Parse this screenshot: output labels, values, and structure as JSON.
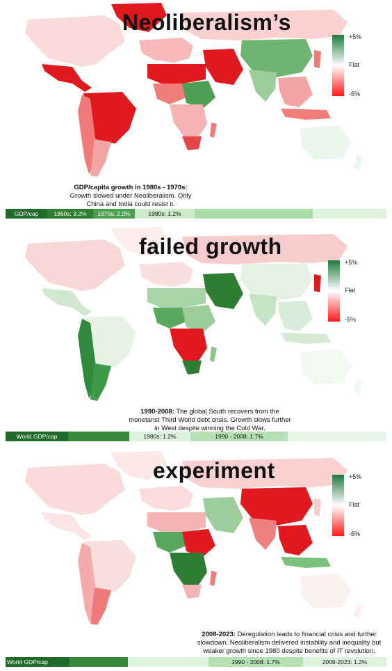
{
  "colors": {
    "strong_green": "#2e7d32",
    "mid_green": "#6abf69",
    "light_green": "#cdeccc",
    "light_red": "#f8c6c6",
    "strong_red": "#e0191e"
  },
  "legend": {
    "top": "+5%",
    "mid": "Flat",
    "bottom": "-5%"
  },
  "panels": [
    {
      "title": "Neoliberalism’s",
      "caption_bold": "GDP/capita growth in 1980s - 1970s:",
      "caption_text": "Growth slowed under Neoliberalism. Only China and India could resist it.",
      "strip": [
        "GDP/cap",
        "1960s: 3.2%",
        "1970s: 2.0%",
        "1980s: 1.2%",
        "",
        ""
      ]
    },
    {
      "title": "failed growth",
      "caption_bold": "1990-2008:",
      "caption_text": "The global South recovers from the monetarist Third World debt crisis. Growth slows further in West despite winning the Cold War.",
      "strip": [
        "World GDP/cap",
        "",
        "1980s: 1.2%",
        "1990 - 2008: 1.7%",
        ""
      ]
    },
    {
      "title": "experiment",
      "caption_bold": "2008-2023:",
      "caption_text": "Deregulation leads to financial crisis and further slowdown. Neoliberalism delivered instability and inequality but weaker growth since 1980 despite benefits of IT revolution.",
      "strip": [
        "World GDP/cap",
        "",
        "",
        "1990 - 2008: 1.7%",
        "2009-2023: 1.2%"
      ]
    }
  ]
}
